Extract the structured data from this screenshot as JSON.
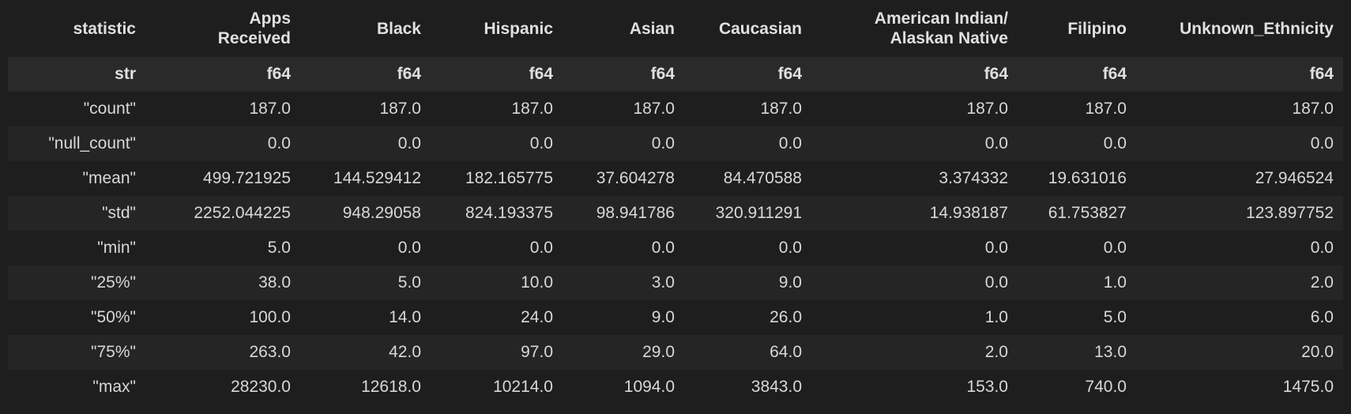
{
  "columns": [
    {
      "name_lines": [
        "statistic"
      ],
      "dtype": "str"
    },
    {
      "name_lines": [
        "Apps",
        "Received"
      ],
      "dtype": "f64"
    },
    {
      "name_lines": [
        "Black"
      ],
      "dtype": "f64"
    },
    {
      "name_lines": [
        "Hispanic"
      ],
      "dtype": "f64"
    },
    {
      "name_lines": [
        "Asian"
      ],
      "dtype": "f64"
    },
    {
      "name_lines": [
        "Caucasian"
      ],
      "dtype": "f64"
    },
    {
      "name_lines": [
        "American Indian/",
        "Alaskan Native"
      ],
      "dtype": "f64"
    },
    {
      "name_lines": [
        "Filipino"
      ],
      "dtype": "f64"
    },
    {
      "name_lines": [
        "Unknown_Ethnicity"
      ],
      "dtype": "f64"
    }
  ],
  "rows": [
    [
      "\"count\"",
      "187.0",
      "187.0",
      "187.0",
      "187.0",
      "187.0",
      "187.0",
      "187.0",
      "187.0"
    ],
    [
      "\"null_count\"",
      "0.0",
      "0.0",
      "0.0",
      "0.0",
      "0.0",
      "0.0",
      "0.0",
      "0.0"
    ],
    [
      "\"mean\"",
      "499.721925",
      "144.529412",
      "182.165775",
      "37.604278",
      "84.470588",
      "3.374332",
      "19.631016",
      "27.946524"
    ],
    [
      "\"std\"",
      "2252.044225",
      "948.29058",
      "824.193375",
      "98.941786",
      "320.911291",
      "14.938187",
      "61.753827",
      "123.897752"
    ],
    [
      "\"min\"",
      "5.0",
      "0.0",
      "0.0",
      "0.0",
      "0.0",
      "0.0",
      "0.0",
      "0.0"
    ],
    [
      "\"25%\"",
      "38.0",
      "5.0",
      "10.0",
      "3.0",
      "9.0",
      "0.0",
      "1.0",
      "2.0"
    ],
    [
      "\"50%\"",
      "100.0",
      "14.0",
      "24.0",
      "9.0",
      "26.0",
      "1.0",
      "5.0",
      "6.0"
    ],
    [
      "\"75%\"",
      "263.0",
      "42.0",
      "97.0",
      "29.0",
      "64.0",
      "2.0",
      "13.0",
      "20.0"
    ],
    [
      "\"max\"",
      "28230.0",
      "12618.0",
      "10214.0",
      "1094.0",
      "3843.0",
      "153.0",
      "740.0",
      "1475.0"
    ]
  ]
}
